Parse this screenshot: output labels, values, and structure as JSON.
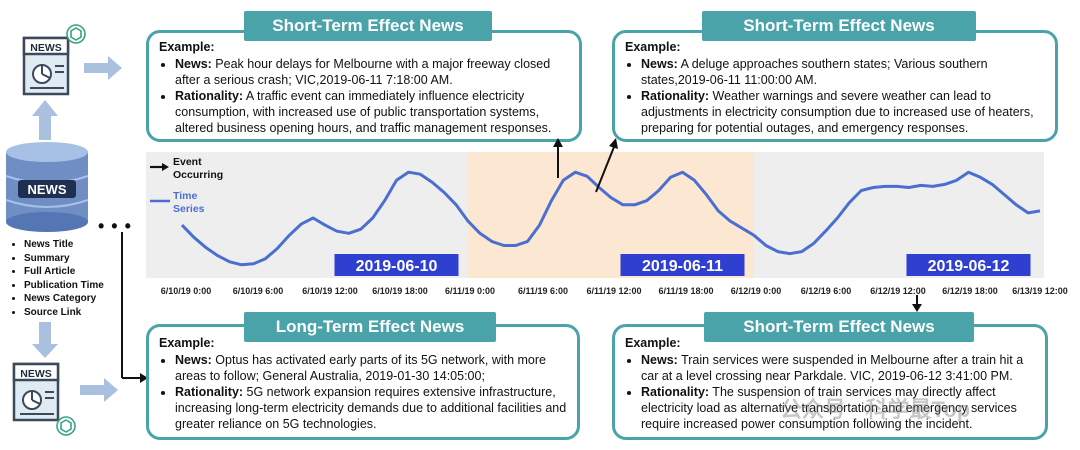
{
  "panels": {
    "top_left": {
      "banner": "Short-Term Effect News",
      "example": "Example:",
      "news_label": "News:",
      "news_text": " Peak hour delays for Melbourne with a major freeway closed after a serious crash; VIC,2019-06-11  7:18:00 AM.",
      "rationality_label": "Rationality:",
      "rationality_text": " A traffic event can immediately influence electricity consumption, with increased use of public transportation systems, altered business opening hours, and traffic management responses."
    },
    "top_right": {
      "banner": "Short-Term Effect News",
      "example": "Example:",
      "news_label": "News:",
      "news_text": " A deluge approaches southern states; Various southern states,2019-06-11  11:00:00 AM.",
      "rationality_label": "Rationality:",
      "rationality_text": " Weather warnings and severe weather can lead to adjustments in electricity consumption due to increased use of heaters, preparing for potential outages, and emergency responses."
    },
    "bottom_left": {
      "banner": "Long-Term Effect News",
      "example": "Example:",
      "news_label": "News:",
      "news_text": " Optus has activated early parts of its 5G network, with more areas to follow; General Australia, 2019-01-30 14:05:00;",
      "rationality_label": "Rationality:",
      "rationality_text": " 5G network expansion requires extensive infrastructure, increasing long-term electricity demands due to additional facilities and greater reliance on 5G technologies."
    },
    "bottom_right": {
      "banner": "Short-Term Effect News",
      "example": "Example:",
      "news_label": "News:",
      "news_text": " Train services were suspended in Melbourne after a train hit a car at a level crossing near Parkdale. VIC, 2019-06-12  3:41:00 PM.",
      "rationality_label": "Rationality:",
      "rationality_text": " The suspension of train services may directly affect electricity load as alternative transportation and emergency services require increased power consumption following the incident."
    }
  },
  "news_attributes": [
    "News Title",
    "Summary",
    "Full Article",
    "Publication Time",
    "News Category",
    "Source Link"
  ],
  "icons": {
    "newspaper": "NEWS",
    "database": "NEWS"
  },
  "dots": "• • •",
  "watermark": "公众号 · 科学最Top",
  "colors": {
    "teal": "#4aa3a9",
    "line": "#4a6fd0",
    "highlight": "#fbe7d2",
    "shade": "#eeeeef",
    "date_box": "#2f3fd0"
  },
  "chart_data": {
    "type": "line",
    "legend": [
      {
        "name": "Event Occurring",
        "line1": "Event",
        "line2": "Occurring",
        "marker": "arrow"
      },
      {
        "name": "Time Series",
        "line1": "Time",
        "line2": "Series",
        "marker": "line"
      }
    ],
    "x_ticks": [
      "6/10/19 0:00",
      "6/10/19 6:00",
      "6/10/19 12:00",
      "6/10/19 18:00",
      "6/11/19 0:00",
      "6/11/19 6:00",
      "6/11/19 12:00",
      "6/11/19 18:00",
      "6/12/19 0:00",
      "6/12/19 6:00",
      "6/12/19 12:00",
      "6/12/19 18:00",
      "6/13/19 12:00"
    ],
    "x": [
      0,
      1,
      2,
      3,
      4,
      5,
      6,
      7,
      8,
      9,
      10,
      11,
      12,
      13,
      14,
      15,
      16,
      17,
      18,
      19,
      20,
      21,
      22,
      23,
      24,
      25,
      26,
      27,
      28,
      29,
      30,
      31,
      32,
      33,
      34,
      35,
      36,
      37,
      38,
      39,
      40,
      41,
      42,
      43,
      44,
      45,
      46,
      47,
      48,
      49,
      50,
      51,
      52,
      53,
      54,
      55,
      56,
      57,
      58,
      59,
      60,
      61,
      62,
      63,
      64,
      65,
      66,
      67,
      68,
      69,
      70,
      71,
      72
    ],
    "y": [
      48,
      36,
      26,
      18,
      12,
      9,
      10,
      15,
      25,
      38,
      49,
      55,
      48,
      42,
      40,
      44,
      55,
      72,
      92,
      100,
      98,
      90,
      80,
      68,
      52,
      40,
      32,
      28,
      28,
      32,
      48,
      72,
      92,
      100,
      96,
      85,
      75,
      68,
      68,
      72,
      82,
      95,
      100,
      92,
      78,
      62,
      52,
      45,
      38,
      28,
      22,
      20,
      22,
      30,
      42,
      55,
      70,
      82,
      85,
      86,
      86,
      85,
      87,
      86,
      88,
      92,
      100,
      95,
      88,
      78,
      68,
      60,
      62
    ],
    "ylim": [
      0,
      110
    ],
    "event_markers": [
      33,
      35
    ],
    "event_marker_top": 62,
    "highlight_range": [
      24,
      48
    ],
    "shade_range": [
      48,
      72
    ],
    "date_labels": [
      {
        "text": "2019-06-10",
        "at": 18
      },
      {
        "text": "2019-06-11",
        "at": 42
      },
      {
        "text": "2019-06-12",
        "at": 66
      }
    ]
  }
}
